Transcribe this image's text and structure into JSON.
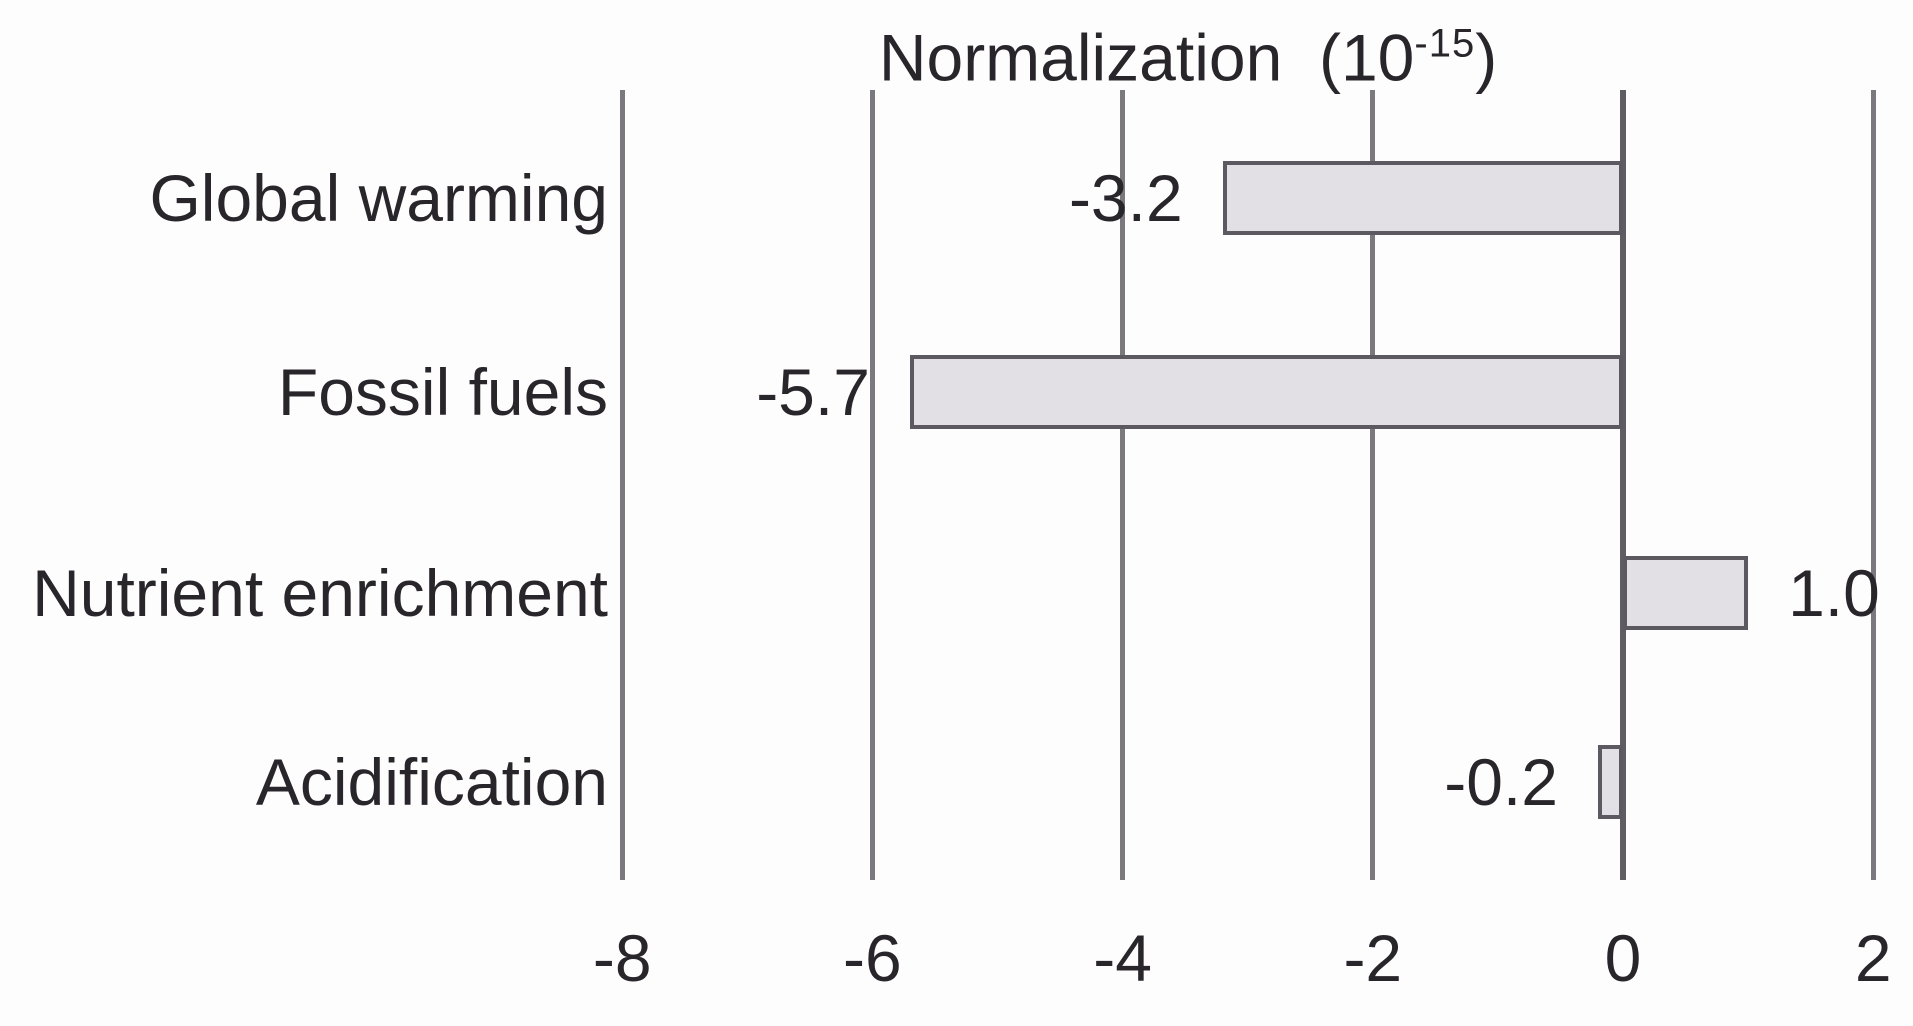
{
  "title": {
    "prefix": "Normalization  (10",
    "superscript": "-15",
    "suffix": ")"
  },
  "chart_data": {
    "type": "bar",
    "orientation": "horizontal",
    "title": "Normalization (10^-15)",
    "categories": [
      "Global warming",
      "Fossil fuels",
      "Nutrient enrichment",
      "Acidification"
    ],
    "values": [
      -3.2,
      -5.7,
      1.0,
      -0.2
    ],
    "value_labels": [
      "-3.2",
      "-5.7",
      "1.0",
      "-0.2"
    ],
    "xlim": [
      -8,
      2
    ],
    "xticks": [
      -8,
      -6,
      -4,
      -2,
      0,
      2
    ],
    "xtick_labels": [
      "-8",
      "-6",
      "-4",
      "-2",
      "0",
      "2"
    ],
    "grid": "vertical-gridlines",
    "legend": "none",
    "colors": {
      "bar_fill": "#e2e0e5",
      "bar_border": "#5c5960",
      "gridline": "#7b787e",
      "zero_line": "#5f5c63",
      "text": "#29262b",
      "background": "#fefdfe"
    }
  }
}
